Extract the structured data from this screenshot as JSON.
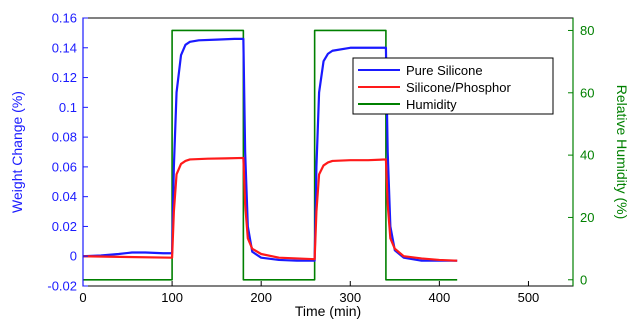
{
  "chart_data": {
    "type": "line",
    "xlabel": "Time (min)",
    "ylabel": "Weight Change (%)",
    "y2label": "Relative Humidity (%)",
    "xlim": [
      0,
      550
    ],
    "ylim": [
      -0.02,
      0.16
    ],
    "y2lim": [
      -2,
      84
    ],
    "xticks": [
      "0",
      "100",
      "200",
      "300",
      "400",
      "500"
    ],
    "xtick_values": [
      0,
      100,
      200,
      300,
      400,
      500
    ],
    "yticks": [
      "-0.02",
      "0",
      "0.02",
      "0.04",
      "0.06",
      "0.08",
      "0.1",
      "0.12",
      "0.14",
      "0.16"
    ],
    "ytick_values": [
      -0.02,
      0,
      0.02,
      0.04,
      0.06,
      0.08,
      0.1,
      0.12,
      0.14,
      0.16
    ],
    "y2ticks": [
      "0",
      "20",
      "40",
      "60",
      "80"
    ],
    "y2tick_values": [
      0,
      20,
      40,
      60,
      80
    ],
    "legend_position": "top-right",
    "colors": {
      "left_axis": "#1a1aff",
      "right_axis": "#008000",
      "pure_silicone": "#1a1aff",
      "silicone_phosphor": "#ff1a1a",
      "humidity": "#008000"
    },
    "series": [
      {
        "name": "Pure Silicone",
        "axis": "left",
        "color": "#1a1aff",
        "x": [
          0,
          20,
          40,
          55,
          70,
          90,
          100,
          102,
          105,
          110,
          115,
          120,
          130,
          150,
          170,
          180,
          182,
          185,
          190,
          200,
          220,
          240,
          260,
          262,
          265,
          270,
          275,
          280,
          300,
          320,
          340,
          342,
          345,
          350,
          360,
          380,
          400,
          420
        ],
        "y": [
          0.0,
          0.0005,
          0.0015,
          0.0025,
          0.0025,
          0.002,
          0.002,
          0.06,
          0.11,
          0.135,
          0.142,
          0.144,
          0.145,
          0.1455,
          0.146,
          0.146,
          0.07,
          0.02,
          0.003,
          -0.001,
          -0.0025,
          -0.003,
          -0.003,
          0.06,
          0.11,
          0.131,
          0.136,
          0.138,
          0.14,
          0.14,
          0.14,
          0.07,
          0.02,
          0.004,
          -0.001,
          -0.003,
          -0.003,
          -0.003
        ]
      },
      {
        "name": "Silicone/Phosphor",
        "axis": "left",
        "color": "#ff1a1a",
        "x": [
          0,
          50,
          100,
          102,
          105,
          110,
          115,
          120,
          140,
          160,
          180,
          182,
          185,
          190,
          200,
          220,
          240,
          260,
          262,
          265,
          270,
          275,
          280,
          300,
          320,
          340,
          342,
          345,
          350,
          360,
          380,
          400,
          420
        ],
        "y": [
          0.0,
          -0.0005,
          -0.001,
          0.03,
          0.055,
          0.062,
          0.064,
          0.065,
          0.0655,
          0.0657,
          0.066,
          0.035,
          0.012,
          0.005,
          0.0015,
          -0.001,
          -0.0015,
          -0.002,
          0.03,
          0.055,
          0.061,
          0.063,
          0.064,
          0.0645,
          0.0645,
          0.065,
          0.035,
          0.012,
          0.005,
          0.0,
          -0.0015,
          -0.0025,
          -0.003
        ]
      },
      {
        "name": "Humidity",
        "axis": "right",
        "color": "#008000",
        "x": [
          0,
          100,
          100,
          180,
          180,
          260,
          260,
          340,
          340,
          420
        ],
        "y": [
          0,
          0,
          80,
          80,
          0,
          0,
          80,
          80,
          0,
          0
        ]
      }
    ]
  }
}
